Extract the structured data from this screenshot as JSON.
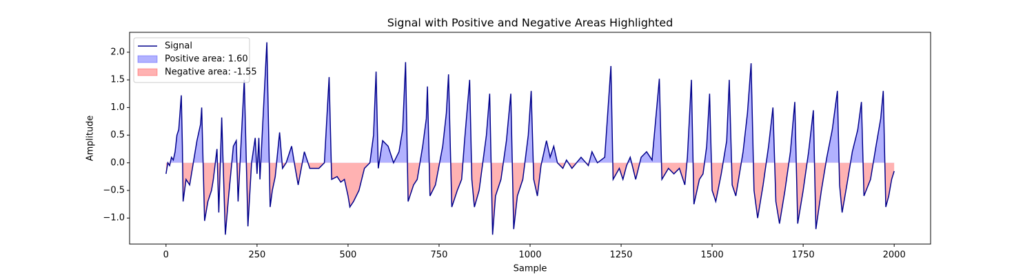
{
  "chart_data": {
    "type": "line",
    "title": "Signal with Positive and Negative Areas Highlighted",
    "x_label": "Sample",
    "y_label": "Amplitude",
    "xlim": [
      -100,
      2100
    ],
    "ylim": [
      -1.47,
      2.36
    ],
    "xticks": [
      0,
      250,
      500,
      750,
      1000,
      1250,
      1500,
      1750,
      2000
    ],
    "yticks": [
      {
        "value": -1.0,
        "label": "−1.0"
      },
      {
        "value": -0.5,
        "label": "−0.5"
      },
      {
        "value": 0.0,
        "label": "0.0"
      },
      {
        "value": 0.5,
        "label": "0.5"
      },
      {
        "value": 1.0,
        "label": "1.0"
      },
      {
        "value": 1.5,
        "label": "1.5"
      },
      {
        "value": 2.0,
        "label": "2.0"
      }
    ],
    "grid": false,
    "legend": "upper left",
    "x": [
      0,
      5,
      10,
      15,
      20,
      25,
      30,
      35,
      42,
      45,
      47,
      55,
      65,
      75,
      85,
      95,
      98,
      106,
      115,
      125,
      130,
      140,
      145,
      153,
      163,
      172,
      185,
      193,
      198,
      215,
      225,
      235,
      245,
      250,
      255,
      258,
      277,
      286,
      292,
      300,
      312,
      320,
      330,
      345,
      355,
      363,
      380,
      395,
      420,
      435,
      448,
      455,
      470,
      480,
      490,
      500,
      505,
      515,
      530,
      545,
      560,
      570,
      577,
      583,
      595,
      610,
      625,
      640,
      650,
      658,
      665,
      680,
      690,
      705,
      715,
      718,
      725,
      740,
      760,
      770,
      776,
      785,
      800,
      812,
      820,
      834,
      840,
      847,
      860,
      870,
      880,
      889,
      897,
      905,
      920,
      935,
      947,
      955,
      965,
      980,
      995,
      1003,
      1010,
      1020,
      1030,
      1045,
      1055,
      1065,
      1075,
      1090,
      1100,
      1115,
      1140,
      1160,
      1170,
      1185,
      1205,
      1222,
      1228,
      1245,
      1255,
      1265,
      1275,
      1290,
      1305,
      1320,
      1335,
      1355,
      1362,
      1380,
      1395,
      1410,
      1425,
      1432,
      1443,
      1450,
      1465,
      1475,
      1485,
      1493,
      1500,
      1510,
      1525,
      1540,
      1547,
      1555,
      1565,
      1585,
      1597,
      1607,
      1615,
      1625,
      1640,
      1655,
      1667,
      1675,
      1685,
      1700,
      1715,
      1727,
      1735,
      1750,
      1765,
      1778,
      1785,
      1800,
      1815,
      1830,
      1844,
      1850,
      1857,
      1870,
      1885,
      1900,
      1910,
      1917,
      1935,
      1950,
      1963,
      1970,
      1977,
      1985,
      1993,
      2000
    ],
    "series": [
      {
        "name": "Signal",
        "color": "#00008b",
        "values": [
          -0.2,
          0.0,
          -0.05,
          0.1,
          0.05,
          0.2,
          0.5,
          0.6,
          1.22,
          0.3,
          -0.7,
          -0.3,
          -0.4,
          0.0,
          0.4,
          0.7,
          1.0,
          -1.05,
          -0.7,
          -0.5,
          -0.3,
          0.25,
          -0.9,
          0.82,
          -1.3,
          -0.6,
          0.3,
          0.4,
          -0.7,
          1.5,
          -1.15,
          0.0,
          0.45,
          -0.2,
          0.45,
          -0.3,
          2.18,
          -0.8,
          -0.5,
          -0.25,
          0.55,
          -0.1,
          0.0,
          0.3,
          -0.1,
          -0.4,
          0.2,
          -0.1,
          -0.1,
          0.0,
          1.55,
          -0.3,
          -0.25,
          -0.35,
          -0.3,
          -0.6,
          -0.8,
          -0.7,
          -0.5,
          -0.1,
          0.0,
          0.5,
          1.65,
          -0.1,
          0.4,
          0.3,
          0.0,
          0.2,
          0.6,
          1.82,
          -0.7,
          -0.4,
          -0.3,
          0.3,
          0.8,
          1.38,
          -0.6,
          -0.4,
          0.3,
          0.9,
          1.6,
          -0.8,
          -0.5,
          -0.3,
          0.4,
          1.5,
          -0.3,
          -0.8,
          -0.5,
          0.0,
          0.5,
          1.25,
          -1.3,
          -0.6,
          -0.3,
          0.4,
          1.25,
          -1.2,
          -0.6,
          -0.3,
          0.5,
          1.3,
          -0.3,
          -0.6,
          -0.05,
          0.4,
          0.1,
          0.3,
          0.0,
          -0.1,
          0.05,
          -0.1,
          0.1,
          -0.05,
          0.2,
          0.0,
          0.1,
          1.75,
          -0.3,
          -0.1,
          -0.3,
          -0.05,
          0.1,
          -0.3,
          0.1,
          0.2,
          0.05,
          1.52,
          -0.3,
          -0.1,
          -0.2,
          -0.1,
          -0.4,
          0.1,
          1.5,
          -0.75,
          -0.3,
          -0.2,
          0.3,
          1.25,
          -0.5,
          -0.7,
          -0.2,
          0.4,
          1.5,
          -0.4,
          -0.6,
          0.2,
          0.9,
          1.8,
          -0.5,
          -1.0,
          -0.4,
          0.3,
          1.0,
          -0.7,
          -1.1,
          -0.5,
          0.2,
          1.1,
          -1.1,
          -0.5,
          0.2,
          0.95,
          -1.2,
          -0.5,
          0.1,
          0.6,
          1.3,
          -0.4,
          -0.9,
          -0.4,
          0.2,
          0.6,
          1.1,
          -0.6,
          -0.3,
          0.3,
          0.8,
          1.3,
          -0.8,
          -0.6,
          -0.3,
          -0.15
        ]
      }
    ],
    "fills": [
      {
        "name": "Positive area: 1.60",
        "color": "#0000ff",
        "side": "positive"
      },
      {
        "name": "Negative area: -1.55",
        "color": "#ff0000",
        "side": "negative"
      }
    ]
  }
}
